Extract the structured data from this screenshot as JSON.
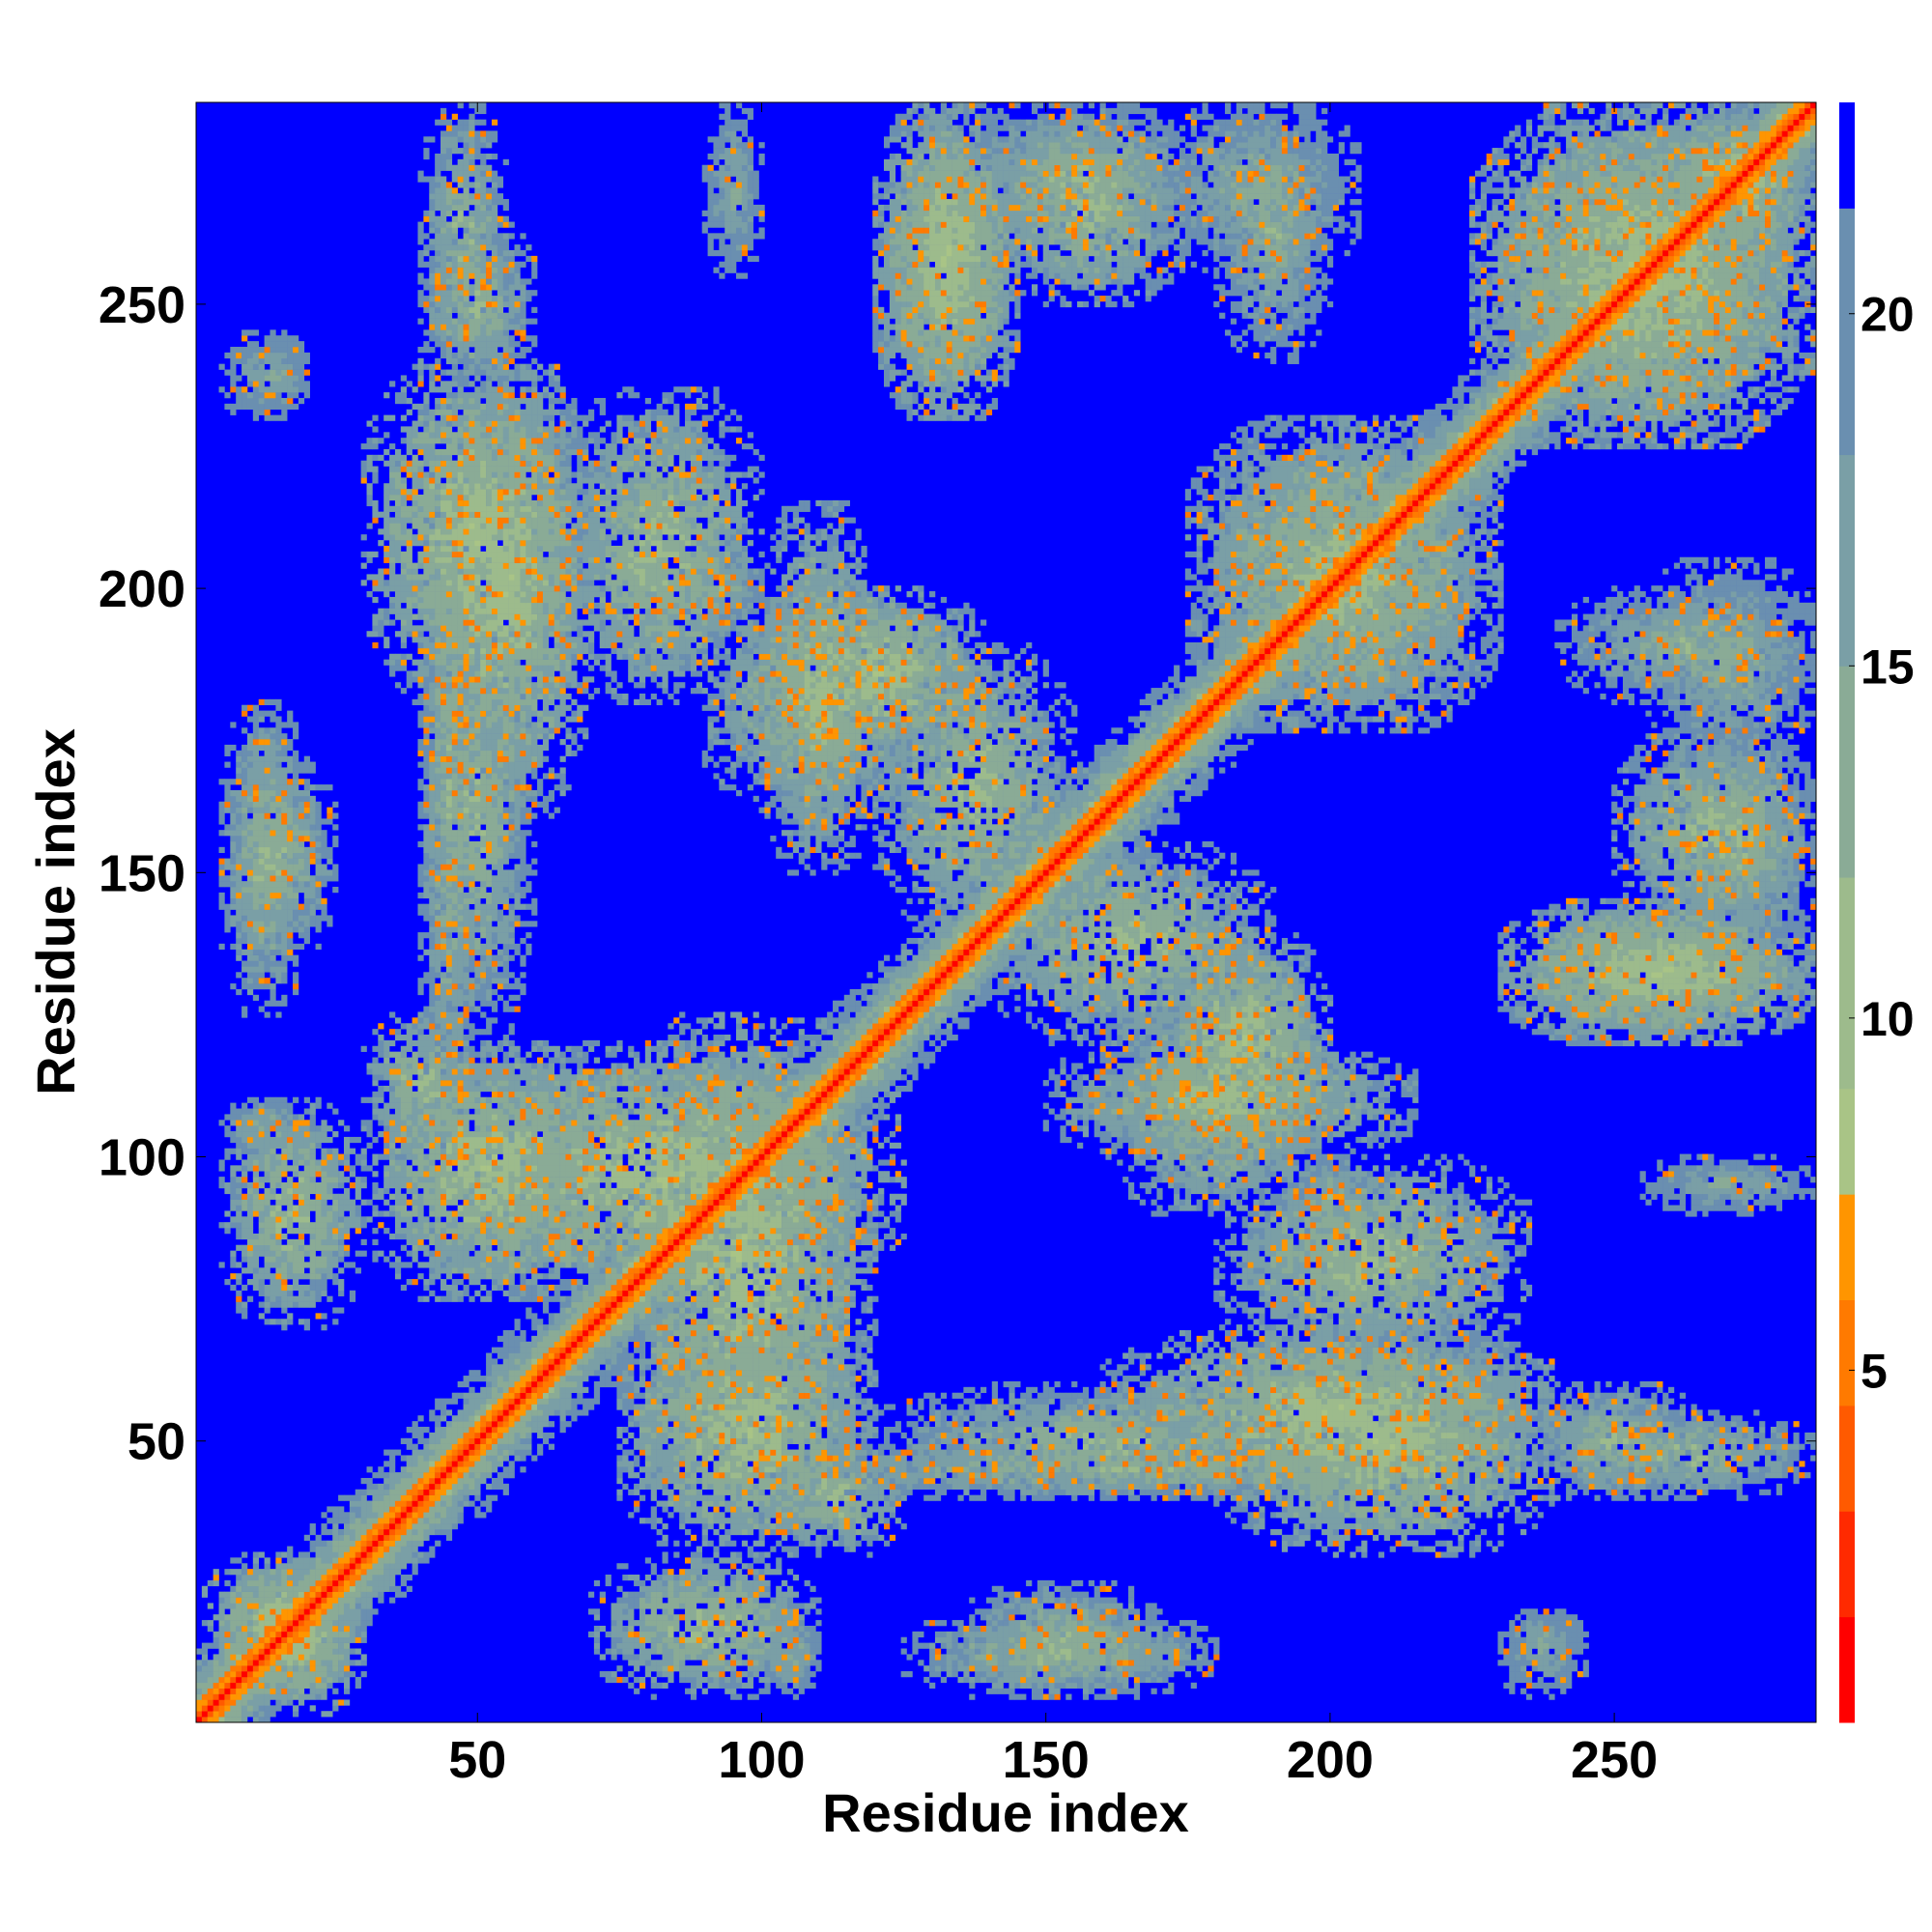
{
  "chart_data": {
    "type": "heatmap",
    "title": "",
    "xlabel": "Residue index",
    "ylabel": "Residue index",
    "n_residues": 285,
    "xlim": [
      0.5,
      285.5
    ],
    "ylim": [
      0.5,
      285.5
    ],
    "x_ticks": [
      50,
      100,
      150,
      200,
      250
    ],
    "y_ticks": [
      50,
      100,
      150,
      200,
      250
    ],
    "x_tick_labels": [
      "50",
      "100",
      "150",
      "200",
      "250"
    ],
    "y_tick_labels": [
      "50",
      "100",
      "150",
      "200",
      "250"
    ],
    "colorbar": {
      "ticks": [
        5,
        10,
        15,
        20
      ],
      "tick_labels": [
        "5",
        "10",
        "15",
        "20"
      ],
      "range": [
        0,
        23
      ],
      "bands": [
        {
          "from": 0,
          "to": 1.5,
          "color": "#ff0000"
        },
        {
          "from": 1.5,
          "to": 3,
          "color": "#ff2a00"
        },
        {
          "from": 3,
          "to": 4.5,
          "color": "#ff5a00"
        },
        {
          "from": 4.5,
          "to": 6,
          "color": "#ff7a00"
        },
        {
          "from": 6,
          "to": 7.5,
          "color": "#ff9500"
        },
        {
          "from": 7.5,
          "to": 9,
          "color": "#a9c486"
        },
        {
          "from": 9,
          "to": 12,
          "color": "#9dbb8c"
        },
        {
          "from": 12,
          "to": 15,
          "color": "#8aab96"
        },
        {
          "from": 15,
          "to": 18,
          "color": "#7a9fa6"
        },
        {
          "from": 18,
          "to": 21.5,
          "color": "#6a8fb0"
        },
        {
          "from": 21.5,
          "to": 23,
          "color": "#0000ff"
        }
      ]
    },
    "background_value": 23,
    "contact_regions": [
      {
        "x": [
          1,
          285
        ],
        "y": [
          1,
          285
        ],
        "kind": "diagonal"
      },
      {
        "x": [
          40,
          125
        ],
        "y": [
          75,
          120
        ],
        "v": 10
      },
      {
        "x": [
          5,
          30
        ],
        "y": [
          70,
          110
        ],
        "v": 11
      },
      {
        "x": [
          5,
          30
        ],
        "y": [
          2,
          30
        ],
        "v": 10
      },
      {
        "x": [
          75,
          120
        ],
        "y": [
          30,
          75
        ],
        "v": 10
      },
      {
        "x": [
          100,
          125
        ],
        "y": [
          30,
          50
        ],
        "v": 11
      },
      {
        "x": [
          120,
          200
        ],
        "y": [
          40,
          60
        ],
        "v": 12
      },
      {
        "x": [
          160,
          240
        ],
        "y": [
          40,
          70
        ],
        "v": 10
      },
      {
        "x": [
          235,
          265
        ],
        "y": [
          40,
          60
        ],
        "v": 12
      },
      {
        "x": [
          150,
          215
        ],
        "y": [
          100,
          120
        ],
        "v": 11
      },
      {
        "x": [
          170,
          200
        ],
        "y": [
          100,
          140
        ],
        "v": 10
      },
      {
        "x": [
          140,
          190
        ],
        "y": [
          120,
          155
        ],
        "v": 11
      },
      {
        "x": [
          230,
          285
        ],
        "y": [
          120,
          145
        ],
        "v": 10
      },
      {
        "x": [
          250,
          285
        ],
        "y": [
          140,
          175
        ],
        "v": 11
      },
      {
        "x": [
          90,
          130
        ],
        "y": [
          160,
          200
        ],
        "v": 11
      },
      {
        "x": [
          30,
          70
        ],
        "y": [
          180,
          240
        ],
        "v": 10
      },
      {
        "x": [
          65,
          100
        ],
        "y": [
          180,
          235
        ],
        "v": 11
      },
      {
        "x": [
          120,
          145
        ],
        "y": [
          230,
          285
        ],
        "v": 10
      },
      {
        "x": [
          135,
          175
        ],
        "y": [
          260,
          285
        ],
        "v": 12
      },
      {
        "x": [
          175,
          230
        ],
        "y": [
          175,
          230
        ],
        "v": 11
      },
      {
        "x": [
          225,
          285
        ],
        "y": [
          225,
          285
        ],
        "v": 10
      },
      {
        "x": [
          255,
          285
        ],
        "y": [
          265,
          285
        ],
        "v": 11
      },
      {
        "x": [
          40,
          50
        ],
        "y": [
          100,
          230
        ],
        "v": 12
      },
      {
        "x": [
          5,
          25
        ],
        "y": [
          135,
          170
        ],
        "v": 12
      },
      {
        "x": [
          85,
          100
        ],
        "y": [
          195,
          205
        ],
        "v": 12
      },
      {
        "x": [
          100,
          110
        ],
        "y": [
          5,
          20
        ],
        "v": 13
      },
      {
        "x": [
          125,
          180
        ],
        "y": [
          5,
          20
        ],
        "v": 12
      },
      {
        "x": [
          230,
          245
        ],
        "y": [
          5,
          20
        ],
        "v": 14
      },
      {
        "x": [
          255,
          285
        ],
        "y": [
          170,
          205
        ],
        "v": 13
      },
      {
        "x": [
          40,
          55
        ],
        "y": [
          240,
          285
        ],
        "v": 12
      },
      {
        "x": [
          90,
          100
        ],
        "y": [
          255,
          285
        ],
        "v": 14
      },
      {
        "x": [
          180,
          200
        ],
        "y": [
          240,
          285
        ],
        "v": 13
      },
      {
        "x": [
          10,
          20
        ],
        "y": [
          230,
          245
        ],
        "v": 14
      }
    ]
  }
}
